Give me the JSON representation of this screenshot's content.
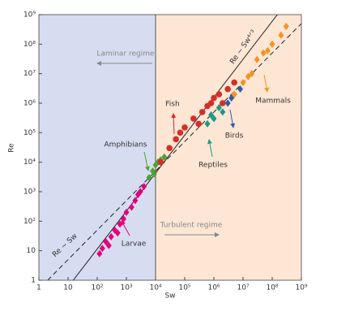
{
  "chart_data": {
    "type": "scatter",
    "log_x": true,
    "log_y": true,
    "x_label": "Sw",
    "y_label": "Re",
    "xlim": [
      1,
      1000000000
    ],
    "ylim": [
      1,
      1000000000
    ],
    "xticks": [
      1,
      10,
      {
        "value": 100,
        "label": "10²"
      },
      {
        "value": 1000,
        "label": "10³"
      },
      {
        "value": 10000,
        "label": "10⁴"
      },
      {
        "value": 100000,
        "label": "10⁵"
      },
      {
        "value": 1000000,
        "label": "10⁶"
      },
      {
        "value": 10000000,
        "label": "10⁷"
      },
      {
        "value": 100000000,
        "label": "10⁸"
      },
      {
        "value": 1000000000,
        "label": "10⁹"
      }
    ],
    "yticks": [
      1,
      10,
      {
        "value": 100,
        "label": "10²"
      },
      {
        "value": 1000,
        "label": "10³"
      },
      {
        "value": 10000,
        "label": "10⁴"
      },
      {
        "value": 100000,
        "label": "10⁵"
      },
      {
        "value": 1000000,
        "label": "10⁶"
      },
      {
        "value": 10000000,
        "label": "10⁷"
      },
      {
        "value": 100000000,
        "label": "10⁸"
      },
      {
        "value": 1000000000,
        "label": "10⁹"
      }
    ],
    "regime_boundary": 10000,
    "regions": [
      {
        "label": "Laminar regime",
        "color": "#d7ddf0"
      },
      {
        "label": "Turbulent regime",
        "color": "#fde6d4"
      }
    ],
    "lines": [
      {
        "label": "Re ~ Sw",
        "dashed": true,
        "x": [
          2,
          1000000000
        ],
        "y": [
          1,
          500000000
        ]
      },
      {
        "label": "Re ~ Sw⁴ᐟ³",
        "dashed": false,
        "x": [
          15,
          150000000
        ],
        "y": [
          1,
          1000000000
        ]
      }
    ],
    "series": [
      {
        "name": "Larvae",
        "color": "#e4007c",
        "marker": "diamond",
        "x": [
          120,
          150,
          200,
          250,
          300,
          400,
          500,
          600,
          800,
          1000,
          1500,
          2000,
          2500,
          3000,
          4000
        ],
        "values": [
          8,
          12,
          20,
          15,
          30,
          50,
          40,
          80,
          120,
          200,
          300,
          500,
          800,
          1000,
          1500
        ]
      },
      {
        "name": "Amphibians",
        "color": "#4ea23a",
        "marker": "diamond",
        "x": [
          6000,
          8000,
          9000,
          10000,
          12000,
          15000,
          20000
        ],
        "values": [
          3000,
          5000,
          4000,
          8000,
          10000,
          12000,
          15000
        ]
      },
      {
        "name": "Fish",
        "color": "#d2302a",
        "marker": "circle",
        "x": [
          15000,
          30000,
          50000,
          70000,
          100000,
          200000,
          300000,
          400000,
          600000,
          800000,
          1000000,
          1500000,
          2000000,
          3000000,
          5000000
        ],
        "values": [
          10000,
          30000,
          60000,
          100000,
          150000,
          300000,
          200000,
          500000,
          800000,
          1000000,
          1500000,
          2000000,
          1000000,
          3000000,
          5000000
        ]
      },
      {
        "name": "Reptiles",
        "color": "#17998a",
        "marker": "diamond",
        "x": [
          600000,
          800000,
          1000000,
          1500000,
          2000000
        ],
        "values": [
          200000,
          400000,
          300000,
          700000,
          500000
        ]
      },
      {
        "name": "Birds",
        "color": "#2e5ca6",
        "marker": "diamond",
        "x": [
          3000000,
          4000000,
          5000000,
          8000000
        ],
        "values": [
          1000000,
          1500000,
          2000000,
          3000000
        ]
      },
      {
        "name": "Mammals",
        "color": "#f39420",
        "marker": "diamond",
        "x": [
          5000000,
          10000000,
          15000000,
          20000000,
          30000000,
          50000000,
          70000000,
          100000000,
          200000000,
          300000000
        ],
        "values": [
          2000000,
          5000000,
          8000000,
          10000000,
          30000000,
          50000000,
          60000000,
          100000000,
          200000000,
          400000000
        ]
      }
    ]
  }
}
